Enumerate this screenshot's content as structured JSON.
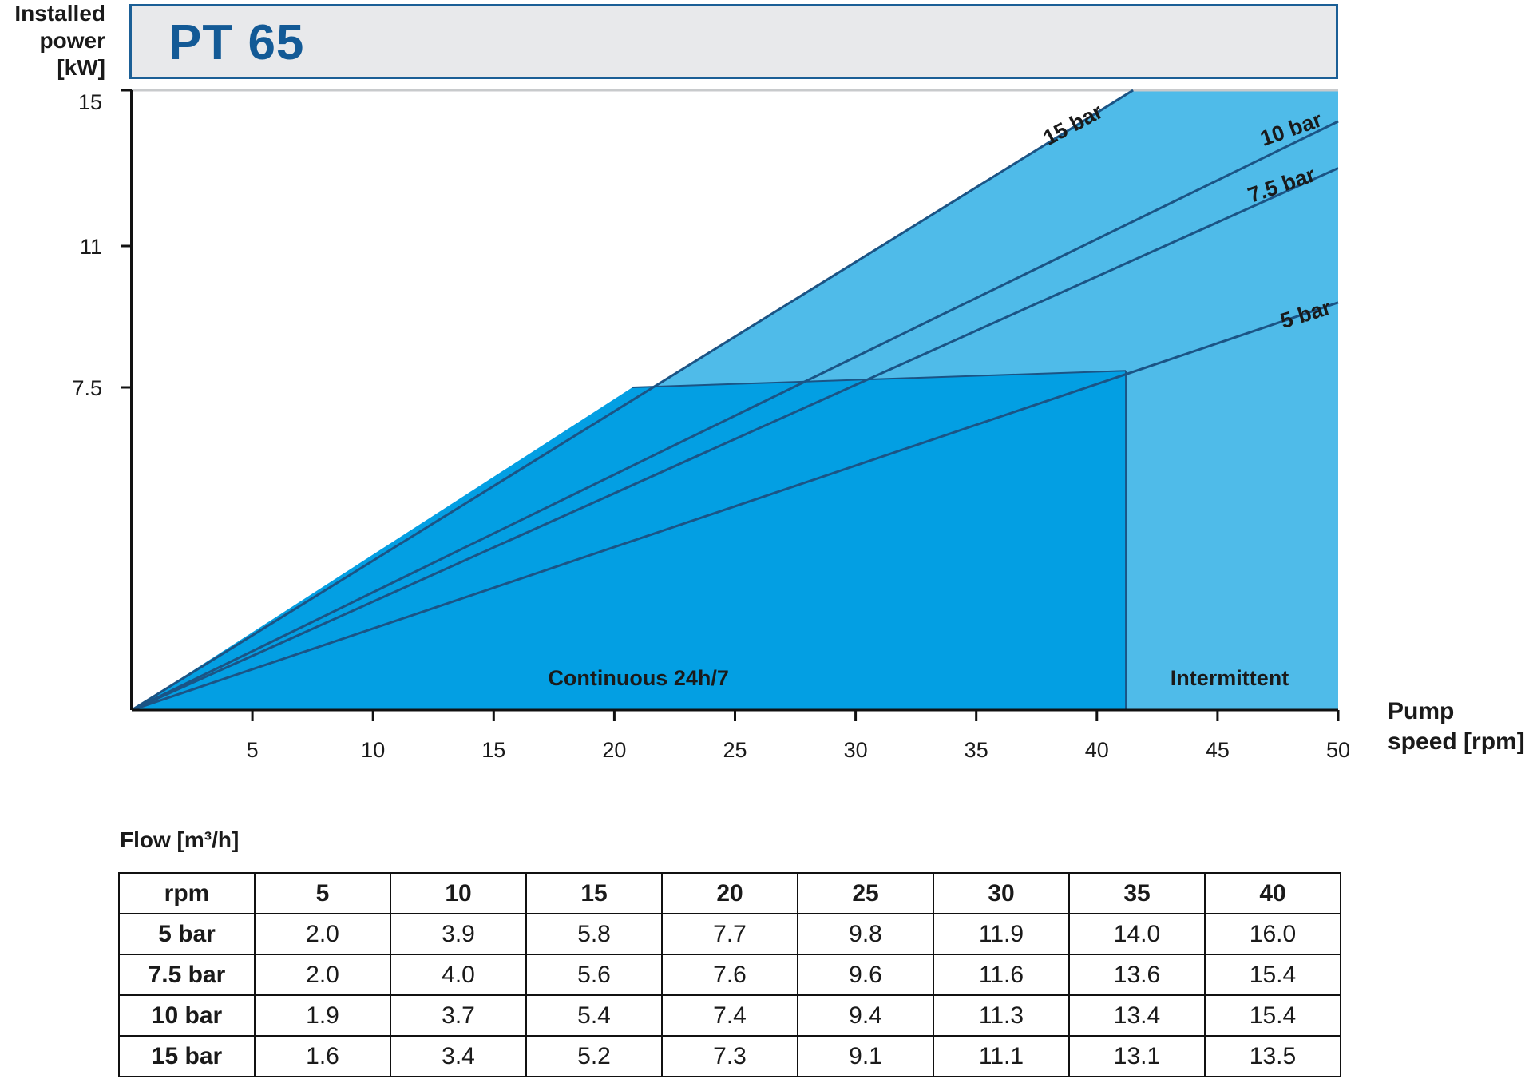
{
  "y_title": {
    "line1": "Installed",
    "line2": "power",
    "line3": "[kW]"
  },
  "title": "PT 65",
  "x_title": {
    "line1": "Pump",
    "line2": "speed [rpm]"
  },
  "colors": {
    "continuous_fill": "#039fe3",
    "intermittent_fill": "#4fbbe9",
    "line": "#1b5485",
    "title_text": "#135a96",
    "title_border": "#1b5f96",
    "title_bg": "#e8e9eb"
  },
  "chart_data": {
    "type": "line",
    "xlabel": "Pump speed [rpm]",
    "ylabel": "Installed power [kW]",
    "xlim": [
      0,
      50
    ],
    "x_ticks": [
      5,
      10,
      15,
      20,
      25,
      30,
      35,
      40,
      45,
      50
    ],
    "y_ticks": [
      7.5,
      11,
      15
    ],
    "y_tick_labels": [
      "7.5",
      "11",
      "15"
    ],
    "series": [
      {
        "name": "15 bar",
        "x": [
          0,
          41.5
        ],
        "y": [
          0,
          15
        ]
      },
      {
        "name": "10 bar",
        "x": [
          0,
          50
        ],
        "y": [
          0,
          14.2
        ]
      },
      {
        "name": "7.5 bar",
        "x": [
          0,
          50
        ],
        "y": [
          0,
          13.0
        ]
      },
      {
        "name": "5 bar",
        "x": [
          0,
          50
        ],
        "y": [
          0,
          9.6
        ]
      }
    ],
    "regions": [
      {
        "name": "Continuous 24h/7",
        "x_max": 41.2,
        "power_max": 7.5
      },
      {
        "name": "Intermittent",
        "x_min": 41.2,
        "x_max": 50
      }
    ]
  },
  "flow_table": {
    "caption": "Flow [m³/h]",
    "header": [
      "rpm",
      "5",
      "10",
      "15",
      "20",
      "25",
      "30",
      "35",
      "40"
    ],
    "rows": [
      [
        "5 bar",
        "2.0",
        "3.9",
        "5.8",
        "7.7",
        "9.8",
        "11.9",
        "14.0",
        "16.0"
      ],
      [
        "7.5 bar",
        "2.0",
        "4.0",
        "5.6",
        "7.6",
        "9.6",
        "11.6",
        "13.6",
        "15.4"
      ],
      [
        "10 bar",
        "1.9",
        "3.7",
        "5.4",
        "7.4",
        "9.4",
        "11.3",
        "13.4",
        "15.4"
      ],
      [
        "15 bar",
        "1.6",
        "3.4",
        "5.2",
        "7.3",
        "9.1",
        "11.1",
        "13.1",
        "13.5"
      ]
    ]
  }
}
